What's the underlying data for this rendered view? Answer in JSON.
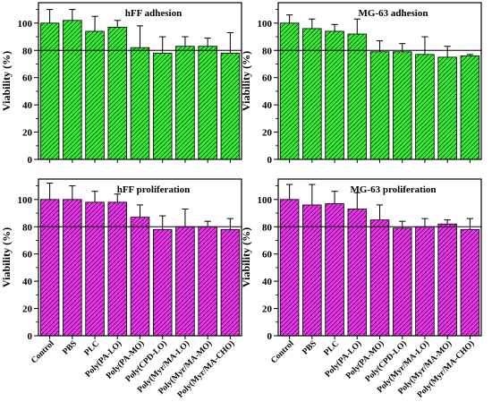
{
  "figure": {
    "ylabel": "Viability (%)",
    "categories": [
      "Control",
      "PBS",
      "PLC",
      "Poly(PA-LO)",
      "Poly(PA-MO)",
      "Poly(CPD-LO)",
      "Poly(Myr/MA-LO)",
      "Poly(Myr/MA-MO)",
      "Poly(Myr/MA-CHO)"
    ]
  },
  "chart_data": [
    {
      "type": "bar",
      "title": "hFF adhesion",
      "ylabel": "Viability (%)",
      "categories": [
        "Control",
        "PBS",
        "PLC",
        "Poly(PA-LO)",
        "Poly(PA-MO)",
        "Poly(CPD-LO)",
        "Poly(Myr/MA-LO)",
        "Poly(Myr/MA-MO)",
        "Poly(Myr/MA-CHO)"
      ],
      "values": [
        100,
        102,
        94,
        97,
        82,
        78,
        83,
        83,
        78
      ],
      "errors": [
        10,
        8,
        11,
        5,
        16,
        12,
        7,
        6,
        15
      ],
      "yticks": [
        0,
        20,
        40,
        60,
        80,
        100
      ],
      "ylim": [
        0,
        115
      ],
      "reference_line": 80,
      "color": "#33ee33",
      "grid": false
    },
    {
      "type": "bar",
      "title": "MG-63 adhesion",
      "ylabel": "Viability (%)",
      "categories": [
        "Control",
        "PBS",
        "PLC",
        "Poly(PA-LO)",
        "Poly(PA-MO)",
        "Poly(CPD-LO)",
        "Poly(Myr/MA-LO)",
        "Poly(Myr/MA-MO)",
        "Poly(Myr/MA-CHO)"
      ],
      "values": [
        100,
        96,
        94,
        92,
        79,
        79,
        77,
        75,
        76
      ],
      "errors": [
        6,
        7,
        5,
        11,
        8,
        6,
        13,
        8,
        1
      ],
      "yticks": [
        0,
        20,
        40,
        60,
        80,
        100
      ],
      "ylim": [
        0,
        115
      ],
      "reference_line": 80,
      "color": "#33ee33",
      "grid": false
    },
    {
      "type": "bar",
      "title": "hFF proliferation",
      "ylabel": "Viability (%)",
      "categories": [
        "Control",
        "PBS",
        "PLC",
        "Poly(PA-LO)",
        "Poly(PA-MO)",
        "Poly(CPD-LO)",
        "Poly(Myr/MA-LO)",
        "Poly(Myr/MA-MO)",
        "Poly(Myr/MA-CHO)"
      ],
      "values": [
        100,
        100,
        98,
        98,
        87,
        78,
        80,
        80,
        78
      ],
      "errors": [
        12,
        10,
        8,
        6,
        9,
        10,
        13,
        4,
        8
      ],
      "yticks": [
        0,
        20,
        40,
        60,
        80,
        100
      ],
      "ylim": [
        0,
        115
      ],
      "reference_line": 80,
      "color": "#ee33ee",
      "grid": false
    },
    {
      "type": "bar",
      "title": "MG-63 proliferation",
      "ylabel": "Viability (%)",
      "categories": [
        "Control",
        "PBS",
        "PLC",
        "Poly(PA-LO)",
        "Poly(PA-MO)",
        "Poly(CPD-LO)",
        "Poly(Myr/MA-LO)",
        "Poly(Myr/MA-MO)",
        "Poly(Myr/MA-CHO)"
      ],
      "values": [
        100,
        96,
        97,
        93,
        85,
        79,
        80,
        82,
        78
      ],
      "errors": [
        11,
        15,
        9,
        12,
        11,
        5,
        6,
        3,
        8
      ],
      "yticks": [
        0,
        20,
        40,
        60,
        80,
        100
      ],
      "ylim": [
        0,
        115
      ],
      "reference_line": 80,
      "color": "#ee33ee",
      "grid": false
    }
  ]
}
